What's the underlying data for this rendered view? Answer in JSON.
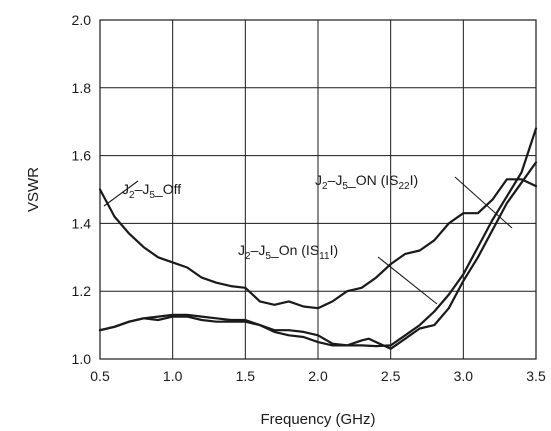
{
  "chart_data": {
    "type": "line",
    "xlabel": "Frequency (GHz)",
    "ylabel": "VSWR",
    "xlim": [
      0.5,
      3.5
    ],
    "ylim": [
      1.0,
      2.0
    ],
    "grid": true,
    "xticks": [
      "0.5",
      "1.0",
      "1.5",
      "2.0",
      "2.5",
      "3.0",
      "3.5"
    ],
    "yticks": [
      "1.0",
      "1.2",
      "1.4",
      "1.6",
      "1.8",
      "2.0"
    ],
    "series": [
      {
        "name": "J2–J5_Off",
        "label_main": "J",
        "label_sub1": "2",
        "label_mid": "–J",
        "label_sub2": "5",
        "label_tail": "_Off",
        "x": [
          0.5,
          0.55,
          0.6,
          0.7,
          0.8,
          0.9,
          1.0,
          1.1,
          1.2,
          1.3,
          1.4,
          1.5,
          1.55,
          1.6,
          1.7,
          1.8,
          1.9,
          2.0,
          2.1,
          2.2,
          2.3,
          2.4,
          2.5,
          2.6,
          2.7,
          2.8,
          2.9,
          3.0,
          3.1,
          3.2,
          3.3,
          3.4,
          3.5
        ],
        "y": [
          1.5,
          1.46,
          1.42,
          1.37,
          1.33,
          1.3,
          1.285,
          1.27,
          1.24,
          1.225,
          1.215,
          1.21,
          1.19,
          1.17,
          1.16,
          1.17,
          1.155,
          1.15,
          1.17,
          1.2,
          1.21,
          1.24,
          1.28,
          1.31,
          1.32,
          1.35,
          1.4,
          1.43,
          1.43,
          1.47,
          1.53,
          1.53,
          1.51
        ]
      },
      {
        "name": "J2–J5_ON (IS22I)",
        "label_main": "J",
        "label_sub1": "2",
        "label_mid": "–J",
        "label_sub2": "5",
        "label_tail": "_ON (IS",
        "label_sub3": "22",
        "label_end": "I)",
        "x": [
          0.5,
          0.6,
          0.7,
          0.8,
          0.9,
          1.0,
          1.1,
          1.2,
          1.3,
          1.4,
          1.5,
          1.6,
          1.7,
          1.8,
          1.9,
          2.0,
          2.1,
          2.2,
          2.3,
          2.4,
          2.5,
          2.6,
          2.7,
          2.8,
          2.9,
          3.0,
          3.1,
          3.2,
          3.3,
          3.4,
          3.5
        ],
        "y": [
          1.085,
          1.095,
          1.11,
          1.12,
          1.115,
          1.125,
          1.125,
          1.115,
          1.11,
          1.11,
          1.11,
          1.1,
          1.08,
          1.07,
          1.065,
          1.05,
          1.04,
          1.04,
          1.04,
          1.038,
          1.04,
          1.07,
          1.1,
          1.14,
          1.19,
          1.25,
          1.33,
          1.41,
          1.48,
          1.55,
          1.68
        ]
      },
      {
        "name": "J2–J5_On (IS11I)",
        "label_main": "J",
        "label_sub1": "2",
        "label_mid": "–J",
        "label_sub2": "5",
        "label_tail": "_On (IS",
        "label_sub3": "11",
        "label_end": "I)",
        "x": [
          0.5,
          0.6,
          0.7,
          0.8,
          0.9,
          1.0,
          1.1,
          1.2,
          1.3,
          1.4,
          1.5,
          1.6,
          1.7,
          1.8,
          1.9,
          2.0,
          2.1,
          2.2,
          2.3,
          2.35,
          2.4,
          2.5,
          2.6,
          2.7,
          2.8,
          2.9,
          3.0,
          3.1,
          3.2,
          3.3,
          3.4,
          3.5
        ],
        "y": [
          1.085,
          1.095,
          1.11,
          1.12,
          1.125,
          1.13,
          1.13,
          1.125,
          1.12,
          1.115,
          1.115,
          1.1,
          1.085,
          1.085,
          1.08,
          1.07,
          1.045,
          1.04,
          1.055,
          1.06,
          1.05,
          1.03,
          1.06,
          1.09,
          1.1,
          1.15,
          1.23,
          1.3,
          1.38,
          1.46,
          1.52,
          1.58
        ]
      }
    ]
  }
}
